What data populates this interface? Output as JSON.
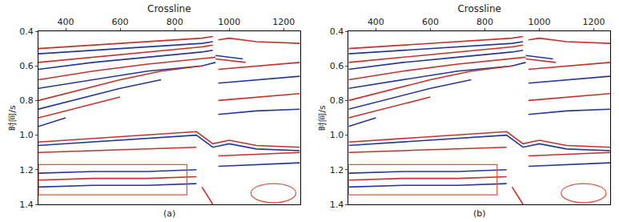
{
  "chart_data": [
    {
      "type": "line",
      "xlabel": "Crossline",
      "ylabel": "时间/s",
      "annotations": [
        "(a)"
      ],
      "xlim": [
        300,
        1260
      ],
      "ylim": [
        1.4,
        0.4
      ],
      "xticks": [
        400,
        600,
        800,
        1000,
        1200
      ],
      "yticks": [
        0.4,
        0.6,
        0.8,
        1.0,
        1.2,
        1.4
      ],
      "grid": false,
      "series": [
        {
          "color": "#c8302a",
          "x": [
            300,
            500,
            700,
            900,
            940
          ],
          "values": [
            0.5,
            0.48,
            0.46,
            0.44,
            0.43
          ]
        },
        {
          "color": "#23389a",
          "x": [
            300,
            500,
            700,
            900,
            940
          ],
          "values": [
            0.53,
            0.51,
            0.49,
            0.47,
            0.46
          ]
        },
        {
          "color": "#c8302a",
          "x": [
            300,
            500,
            700,
            900,
            940
          ],
          "values": [
            0.58,
            0.55,
            0.52,
            0.49,
            0.48
          ]
        },
        {
          "color": "#23389a",
          "x": [
            300,
            500,
            700,
            900,
            940
          ],
          "values": [
            0.62,
            0.58,
            0.55,
            0.52,
            0.51
          ]
        },
        {
          "color": "#c8302a",
          "x": [
            300,
            500,
            700,
            900,
            950
          ],
          "values": [
            0.68,
            0.63,
            0.59,
            0.56,
            0.55
          ]
        },
        {
          "color": "#23389a",
          "x": [
            300,
            500,
            700,
            900,
            950
          ],
          "values": [
            0.73,
            0.68,
            0.63,
            0.6,
            0.58
          ]
        },
        {
          "color": "#c8302a",
          "x": [
            300,
            450,
            600,
            750,
            900
          ],
          "values": [
            0.8,
            0.74,
            0.68,
            0.63,
            0.6
          ]
        },
        {
          "color": "#23389a",
          "x": [
            300,
            450,
            600,
            750
          ],
          "values": [
            0.85,
            0.79,
            0.73,
            0.68
          ]
        },
        {
          "color": "#c8302a",
          "x": [
            300,
            450,
            600
          ],
          "values": [
            0.9,
            0.84,
            0.78
          ]
        },
        {
          "color": "#23389a",
          "x": [
            300,
            400
          ],
          "values": [
            0.95,
            0.9
          ]
        },
        {
          "color": "#c8302a",
          "x": [
            300,
            500,
            700,
            880,
            940,
            1000,
            1100,
            1260
          ],
          "values": [
            1.04,
            1.02,
            1.0,
            0.98,
            1.05,
            1.03,
            1.06,
            1.07
          ]
        },
        {
          "color": "#23389a",
          "x": [
            300,
            500,
            700,
            880,
            940,
            1000,
            1100,
            1260
          ],
          "values": [
            1.06,
            1.04,
            1.02,
            1.0,
            1.07,
            1.05,
            1.08,
            1.09
          ]
        },
        {
          "color": "#c8302a",
          "x": [
            300,
            500,
            700,
            880
          ],
          "values": [
            1.1,
            1.09,
            1.08,
            1.07
          ]
        },
        {
          "color": "#c8302a",
          "x": [
            960,
            1000,
            1100,
            1260
          ],
          "values": [
            0.45,
            0.44,
            0.46,
            0.47
          ]
        },
        {
          "color": "#23389a",
          "x": [
            950,
            1000,
            1050
          ],
          "values": [
            0.54,
            0.55,
            0.56
          ]
        },
        {
          "color": "#c8302a",
          "x": [
            950,
            1000,
            1060
          ],
          "values": [
            0.56,
            0.57,
            0.58
          ]
        },
        {
          "color": "#c8302a",
          "x": [
            960,
            1100,
            1260
          ],
          "values": [
            0.62,
            0.6,
            0.58
          ]
        },
        {
          "color": "#23389a",
          "x": [
            960,
            1100,
            1260
          ],
          "values": [
            0.7,
            0.68,
            0.66
          ]
        },
        {
          "color": "#c8302a",
          "x": [
            960,
            1100,
            1260
          ],
          "values": [
            0.8,
            0.78,
            0.76
          ]
        },
        {
          "color": "#23389a",
          "x": [
            960,
            1100,
            1260
          ],
          "values": [
            0.88,
            0.86,
            0.85
          ]
        },
        {
          "color": "#c8302a",
          "x": [
            960,
            1100,
            1260
          ],
          "values": [
            1.12,
            1.11,
            1.1
          ]
        },
        {
          "color": "#23389a",
          "x": [
            960,
            1100,
            1260
          ],
          "values": [
            1.18,
            1.17,
            1.16
          ]
        },
        {
          "color": "#23389a",
          "x": [
            300,
            500,
            700,
            880
          ],
          "values": [
            1.22,
            1.21,
            1.21,
            1.2
          ]
        },
        {
          "color": "#c8302a",
          "x": [
            300,
            500,
            700,
            880
          ],
          "values": [
            1.26,
            1.25,
            1.25,
            1.24
          ]
        },
        {
          "color": "#23389a",
          "x": [
            300,
            500,
            700,
            880
          ],
          "values": [
            1.3,
            1.29,
            1.29,
            1.28
          ]
        },
        {
          "color": "#c8302a",
          "x": [
            900,
            920,
            940
          ],
          "values": [
            1.3,
            1.35,
            1.4
          ]
        }
      ],
      "highlights": [
        {
          "shape": "rect",
          "color": "#e0503c",
          "x": [
            300,
            845
          ],
          "y": [
            1.17,
            1.345
          ]
        },
        {
          "shape": "ellipse",
          "color": "#e0503c",
          "x": [
            1080,
            1245
          ],
          "y": [
            1.28,
            1.39
          ]
        }
      ]
    },
    {
      "type": "line",
      "xlabel": "Crossline",
      "ylabel": "时间/s",
      "annotations": [
        "(b)"
      ],
      "xlim": [
        300,
        1260
      ],
      "ylim": [
        1.4,
        0.4
      ],
      "xticks": [
        400,
        600,
        800,
        1000,
        1200
      ],
      "yticks": [
        0.4,
        0.6,
        0.8,
        1.0,
        1.2,
        1.4
      ],
      "grid": false,
      "series": [
        {
          "color": "#c8302a",
          "x": [
            300,
            500,
            700,
            900,
            940
          ],
          "values": [
            0.5,
            0.48,
            0.46,
            0.44,
            0.43
          ]
        },
        {
          "color": "#23389a",
          "x": [
            300,
            500,
            700,
            900,
            940
          ],
          "values": [
            0.53,
            0.51,
            0.49,
            0.47,
            0.46
          ]
        },
        {
          "color": "#c8302a",
          "x": [
            300,
            500,
            700,
            900,
            940
          ],
          "values": [
            0.58,
            0.55,
            0.52,
            0.49,
            0.48
          ]
        },
        {
          "color": "#23389a",
          "x": [
            300,
            500,
            700,
            900,
            940
          ],
          "values": [
            0.62,
            0.58,
            0.55,
            0.52,
            0.51
          ]
        },
        {
          "color": "#c8302a",
          "x": [
            300,
            500,
            700,
            900,
            950
          ],
          "values": [
            0.68,
            0.63,
            0.59,
            0.56,
            0.55
          ]
        },
        {
          "color": "#23389a",
          "x": [
            300,
            500,
            700,
            900,
            950
          ],
          "values": [
            0.73,
            0.68,
            0.63,
            0.6,
            0.58
          ]
        },
        {
          "color": "#c8302a",
          "x": [
            300,
            450,
            600,
            750,
            900
          ],
          "values": [
            0.8,
            0.74,
            0.68,
            0.63,
            0.6
          ]
        },
        {
          "color": "#23389a",
          "x": [
            300,
            450,
            600,
            750
          ],
          "values": [
            0.85,
            0.79,
            0.73,
            0.68
          ]
        },
        {
          "color": "#c8302a",
          "x": [
            300,
            450,
            600
          ],
          "values": [
            0.9,
            0.84,
            0.78
          ]
        },
        {
          "color": "#23389a",
          "x": [
            300,
            400
          ],
          "values": [
            0.95,
            0.9
          ]
        },
        {
          "color": "#c8302a",
          "x": [
            300,
            500,
            700,
            880,
            940,
            1000,
            1100,
            1260
          ],
          "values": [
            1.04,
            1.02,
            1.0,
            0.98,
            1.05,
            1.03,
            1.06,
            1.07
          ]
        },
        {
          "color": "#23389a",
          "x": [
            300,
            500,
            700,
            880,
            940,
            1000,
            1100,
            1260
          ],
          "values": [
            1.06,
            1.04,
            1.02,
            1.0,
            1.07,
            1.05,
            1.08,
            1.09
          ]
        },
        {
          "color": "#c8302a",
          "x": [
            300,
            500,
            700,
            880
          ],
          "values": [
            1.1,
            1.09,
            1.08,
            1.07
          ]
        },
        {
          "color": "#c8302a",
          "x": [
            960,
            1000,
            1100,
            1260
          ],
          "values": [
            0.45,
            0.44,
            0.46,
            0.47
          ]
        },
        {
          "color": "#23389a",
          "x": [
            950,
            1000,
            1050
          ],
          "values": [
            0.54,
            0.55,
            0.56
          ]
        },
        {
          "color": "#c8302a",
          "x": [
            950,
            1000,
            1060
          ],
          "values": [
            0.56,
            0.57,
            0.58
          ]
        },
        {
          "color": "#c8302a",
          "x": [
            960,
            1100,
            1260
          ],
          "values": [
            0.62,
            0.6,
            0.58
          ]
        },
        {
          "color": "#23389a",
          "x": [
            960,
            1100,
            1260
          ],
          "values": [
            0.7,
            0.68,
            0.66
          ]
        },
        {
          "color": "#c8302a",
          "x": [
            960,
            1100,
            1260
          ],
          "values": [
            0.8,
            0.78,
            0.76
          ]
        },
        {
          "color": "#23389a",
          "x": [
            960,
            1100,
            1260
          ],
          "values": [
            0.88,
            0.86,
            0.85
          ]
        },
        {
          "color": "#c8302a",
          "x": [
            960,
            1100,
            1260
          ],
          "values": [
            1.12,
            1.11,
            1.1
          ]
        },
        {
          "color": "#23389a",
          "x": [
            960,
            1100,
            1260
          ],
          "values": [
            1.18,
            1.17,
            1.16
          ]
        },
        {
          "color": "#23389a",
          "x": [
            300,
            500,
            700,
            880
          ],
          "values": [
            1.22,
            1.21,
            1.21,
            1.2
          ]
        },
        {
          "color": "#c8302a",
          "x": [
            300,
            500,
            700,
            880
          ],
          "values": [
            1.26,
            1.25,
            1.25,
            1.24
          ]
        },
        {
          "color": "#23389a",
          "x": [
            300,
            500,
            700,
            880
          ],
          "values": [
            1.3,
            1.29,
            1.29,
            1.28
          ]
        },
        {
          "color": "#c8302a",
          "x": [
            900,
            920,
            940
          ],
          "values": [
            1.3,
            1.35,
            1.4
          ]
        }
      ],
      "highlights": [
        {
          "shape": "rect",
          "color": "#e0503c",
          "x": [
            300,
            845
          ],
          "y": [
            1.17,
            1.345
          ]
        },
        {
          "shape": "ellipse",
          "color": "#e0503c",
          "x": [
            1080,
            1245
          ],
          "y": [
            1.28,
            1.39
          ]
        }
      ]
    }
  ]
}
